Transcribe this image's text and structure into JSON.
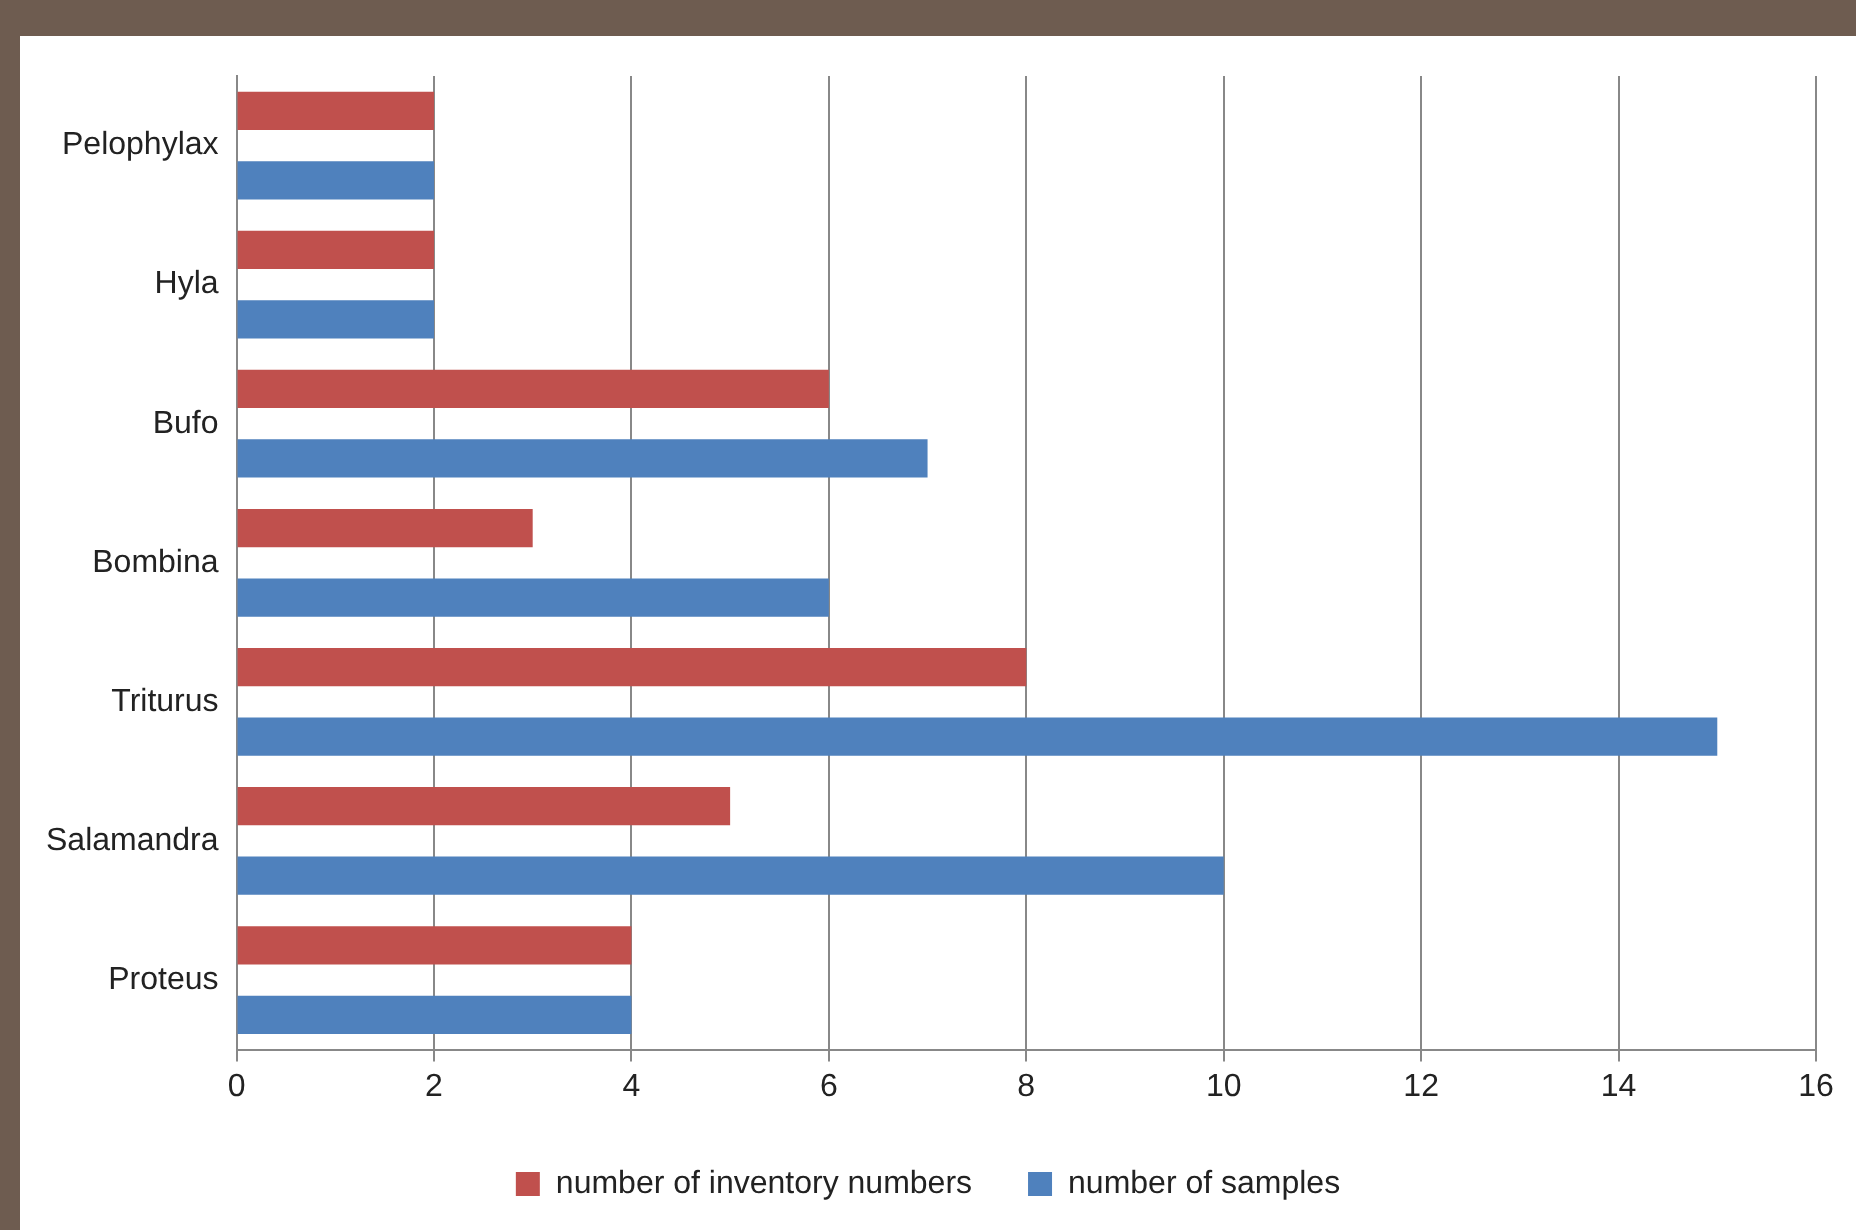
{
  "chart_data": {
    "type": "bar",
    "orientation": "horizontal",
    "categories": [
      "Pelophylax",
      "Hyla",
      "Bufo",
      "Bombina",
      "Triturus",
      "Salamandra",
      "Proteus"
    ],
    "series": [
      {
        "name": "number of inventory numbers",
        "color": "#c0504d",
        "values": [
          2,
          2,
          6,
          3,
          8,
          5,
          4
        ]
      },
      {
        "name": "number of samples",
        "color": "#4f81bd",
        "values": [
          2,
          2,
          7,
          6,
          15,
          10,
          4
        ]
      }
    ],
    "xlim": [
      0,
      16
    ],
    "xticks": [
      0,
      2,
      4,
      6,
      8,
      10,
      12,
      14,
      16
    ],
    "grid": "x",
    "legend": "bottom"
  }
}
